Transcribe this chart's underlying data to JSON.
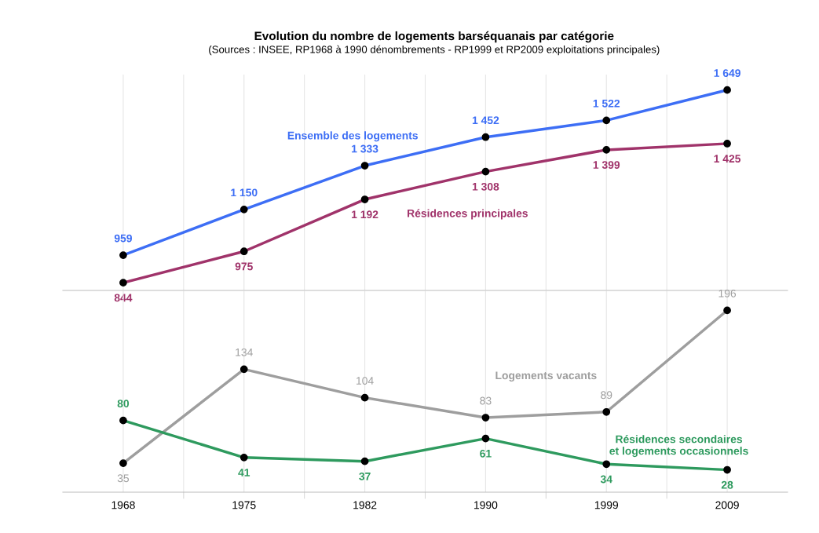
{
  "chart_data": [
    {
      "type": "line",
      "title": "Evolution du nombre de logements barséquanais par catégorie",
      "subtitle": "(Sources : INSEE, RP1968 à 1990 dénombrements - RP1999 et RP2009 exploitations principales)",
      "categories": [
        "1968",
        "1975",
        "1982",
        "1990",
        "1999",
        "2009"
      ],
      "tick_labels": false,
      "grid": "x",
      "marker": "circle",
      "series": [
        {
          "name": "Ensemble des logements",
          "color": "#3d6ef5",
          "values": [
            959,
            1150,
            1333,
            1452,
            1522,
            1649
          ],
          "value_labels": [
            "959",
            "1 150",
            "1 333",
            "1 452",
            "1 522",
            "1 649"
          ]
        },
        {
          "name": "Résidences principales",
          "color": "#a0336a",
          "values": [
            844,
            975,
            1192,
            1308,
            1399,
            1425
          ],
          "value_labels": [
            "844",
            "975",
            "1 192",
            "1 308",
            "1 399",
            "1 425"
          ]
        }
      ]
    },
    {
      "type": "line",
      "categories": [
        "1968",
        "1975",
        "1982",
        "1990",
        "1999",
        "2009"
      ],
      "tick_labels": "x",
      "grid": "x",
      "marker": "circle",
      "series": [
        {
          "name": "Logements vacants",
          "color": "#9e9e9e",
          "values": [
            35,
            134,
            104,
            83,
            89,
            196
          ],
          "value_labels": [
            "35",
            "134",
            "104",
            "83",
            "89",
            "196"
          ]
        },
        {
          "name": "Résidences secondaires\net logements occasionnels",
          "color": "#2e9a5e",
          "values": [
            80,
            41,
            37,
            61,
            34,
            28
          ],
          "value_labels": [
            "80",
            "41",
            "37",
            "61",
            "34",
            "28"
          ]
        }
      ]
    }
  ]
}
